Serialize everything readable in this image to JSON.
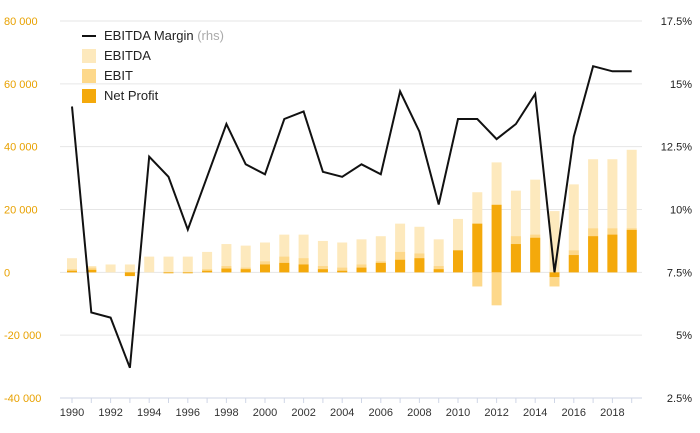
{
  "chart_data": {
    "type": "bar",
    "categories": [
      "1990",
      "1991",
      "1992",
      "1993",
      "1994",
      "1995",
      "1996",
      "1997",
      "1998",
      "1999",
      "2000",
      "2001",
      "2002",
      "2003",
      "2004",
      "2005",
      "2006",
      "2007",
      "2008",
      "2009",
      "2010",
      "2011",
      "2012",
      "2013",
      "2014",
      "2015",
      "2016",
      "2017",
      "2018",
      "2019"
    ],
    "x_tick_labels": [
      "1990",
      "1992",
      "1994",
      "1996",
      "1998",
      "2000",
      "2002",
      "2004",
      "2006",
      "2008",
      "2010",
      "2012",
      "2014",
      "2016",
      "2018"
    ],
    "ylim_left": [
      -40000,
      80000
    ],
    "y_ticks_left": [
      -40000,
      -20000,
      0,
      20000,
      40000,
      60000,
      80000
    ],
    "y_tick_labels_left": [
      "-40 000",
      "-20 000",
      "0",
      "20 000",
      "40 000",
      "60 000",
      "80 000"
    ],
    "ylim_right": [
      2.5,
      17.5
    ],
    "y_ticks_right": [
      2.5,
      5,
      7.5,
      10,
      12.5,
      15,
      17.5
    ],
    "y_tick_labels_right": [
      "2.5%",
      "5%",
      "7.5%",
      "10%",
      "12.5%",
      "15%",
      "17.5%"
    ],
    "grid": true,
    "legend_position": "top-left",
    "series": [
      {
        "name": "EBITDA",
        "kind": "bar",
        "color": "#fde9bd",
        "values": [
          4500,
          2000,
          2500,
          2500,
          5000,
          5000,
          5000,
          6500,
          9000,
          8500,
          9500,
          12000,
          12000,
          10000,
          9500,
          10500,
          11500,
          15500,
          14500,
          10500,
          17000,
          25500,
          35000,
          26000,
          29500,
          19500,
          28000,
          36000,
          36000,
          39000
        ]
      },
      {
        "name": "EBIT",
        "kind": "bar",
        "color": "#fdd88a",
        "values": [
          1000,
          1500,
          0,
          -1000,
          0,
          0,
          0,
          1000,
          2000,
          1500,
          3500,
          5000,
          4500,
          2000,
          1500,
          2500,
          3500,
          6500,
          6000,
          2000,
          7000,
          -4500,
          -10500,
          11500,
          12000,
          -4500,
          7000,
          14000,
          14000,
          14000
        ]
      },
      {
        "name": "Net Profit",
        "kind": "bar",
        "color": "#f4a90b",
        "values": [
          500,
          800,
          0,
          -1200,
          0,
          -300,
          -300,
          500,
          1200,
          1000,
          2500,
          3000,
          2500,
          1000,
          500,
          1500,
          3000,
          4000,
          4500,
          1000,
          7000,
          15500,
          21500,
          9000,
          11000,
          -1500,
          5500,
          11500,
          12000,
          13500
        ]
      },
      {
        "name": "EBITDA Margin",
        "label_suffix": "(rhs)",
        "kind": "line",
        "axis": "right",
        "color": "#111111",
        "values": [
          14.1,
          5.9,
          5.7,
          3.7,
          12.1,
          11.3,
          9.2,
          11.3,
          13.4,
          11.8,
          11.4,
          13.6,
          13.9,
          11.5,
          11.3,
          11.8,
          11.4,
          14.7,
          13.1,
          10.2,
          13.6,
          13.6,
          12.8,
          13.4,
          14.6,
          7.5,
          12.9,
          15.7,
          15.5,
          15.5
        ]
      }
    ]
  }
}
